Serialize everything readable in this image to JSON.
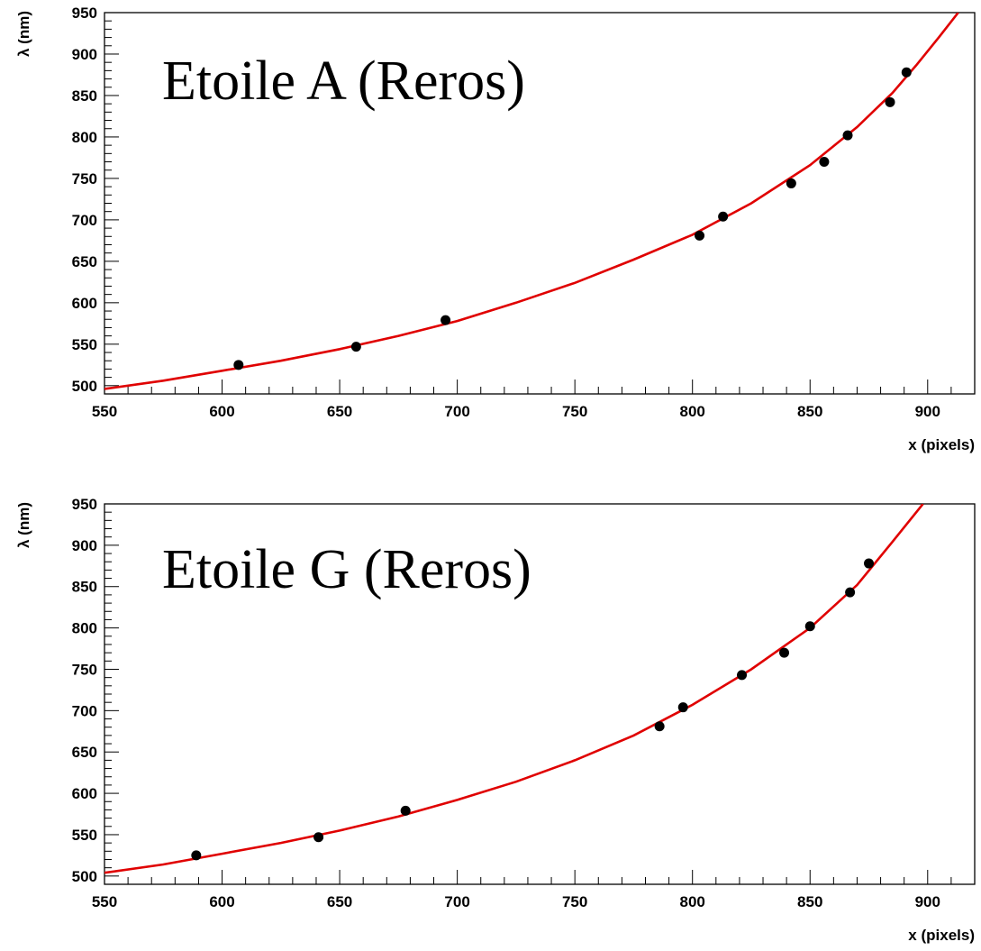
{
  "chart_data": [
    {
      "type": "scatter",
      "title": "Etoile A (Reros)",
      "xlabel": "x (pixels)",
      "ylabel": "λ (nm)",
      "xlim": [
        550,
        920
      ],
      "ylim": [
        490,
        950
      ],
      "xticks": [
        550,
        600,
        650,
        700,
        750,
        800,
        850,
        900
      ],
      "yticks": [
        500,
        550,
        600,
        650,
        700,
        750,
        800,
        850,
        900,
        950
      ],
      "grid": false,
      "points_color": "#000000",
      "fit_color": "#e00000",
      "points": [
        {
          "x": 607,
          "y": 525
        },
        {
          "x": 657,
          "y": 547
        },
        {
          "x": 695,
          "y": 579
        },
        {
          "x": 803,
          "y": 681
        },
        {
          "x": 813,
          "y": 704
        },
        {
          "x": 842,
          "y": 744
        },
        {
          "x": 856,
          "y": 770
        },
        {
          "x": 866,
          "y": 802
        },
        {
          "x": 884,
          "y": 842
        },
        {
          "x": 891,
          "y": 878
        }
      ],
      "fit": [
        {
          "x": 550,
          "y": 496
        },
        {
          "x": 575,
          "y": 506
        },
        {
          "x": 600,
          "y": 518
        },
        {
          "x": 625,
          "y": 530
        },
        {
          "x": 650,
          "y": 544
        },
        {
          "x": 675,
          "y": 560
        },
        {
          "x": 700,
          "y": 578
        },
        {
          "x": 725,
          "y": 600
        },
        {
          "x": 750,
          "y": 624
        },
        {
          "x": 775,
          "y": 652
        },
        {
          "x": 800,
          "y": 682
        },
        {
          "x": 825,
          "y": 720
        },
        {
          "x": 850,
          "y": 766
        },
        {
          "x": 870,
          "y": 812
        },
        {
          "x": 885,
          "y": 853
        },
        {
          "x": 895,
          "y": 886
        },
        {
          "x": 905,
          "y": 921
        },
        {
          "x": 913,
          "y": 950
        }
      ]
    },
    {
      "type": "scatter",
      "title": "Etoile G (Reros)",
      "xlabel": "x (pixels)",
      "ylabel": "λ (nm)",
      "xlim": [
        550,
        920
      ],
      "ylim": [
        490,
        950
      ],
      "xticks": [
        550,
        600,
        650,
        700,
        750,
        800,
        850,
        900
      ],
      "yticks": [
        500,
        550,
        600,
        650,
        700,
        750,
        800,
        850,
        900,
        950
      ],
      "grid": false,
      "points_color": "#000000",
      "fit_color": "#e00000",
      "points": [
        {
          "x": 589,
          "y": 525
        },
        {
          "x": 641,
          "y": 547
        },
        {
          "x": 678,
          "y": 579
        },
        {
          "x": 786,
          "y": 681
        },
        {
          "x": 796,
          "y": 704
        },
        {
          "x": 821,
          "y": 743
        },
        {
          "x": 839,
          "y": 770
        },
        {
          "x": 850,
          "y": 802
        },
        {
          "x": 867,
          "y": 843
        },
        {
          "x": 875,
          "y": 878
        }
      ],
      "fit": [
        {
          "x": 550,
          "y": 504
        },
        {
          "x": 575,
          "y": 514
        },
        {
          "x": 600,
          "y": 527
        },
        {
          "x": 625,
          "y": 540
        },
        {
          "x": 650,
          "y": 555
        },
        {
          "x": 675,
          "y": 572
        },
        {
          "x": 700,
          "y": 592
        },
        {
          "x": 725,
          "y": 614
        },
        {
          "x": 750,
          "y": 640
        },
        {
          "x": 775,
          "y": 670
        },
        {
          "x": 800,
          "y": 707
        },
        {
          "x": 825,
          "y": 750
        },
        {
          "x": 850,
          "y": 800
        },
        {
          "x": 870,
          "y": 852
        },
        {
          "x": 885,
          "y": 904
        },
        {
          "x": 898,
          "y": 950
        }
      ]
    }
  ]
}
